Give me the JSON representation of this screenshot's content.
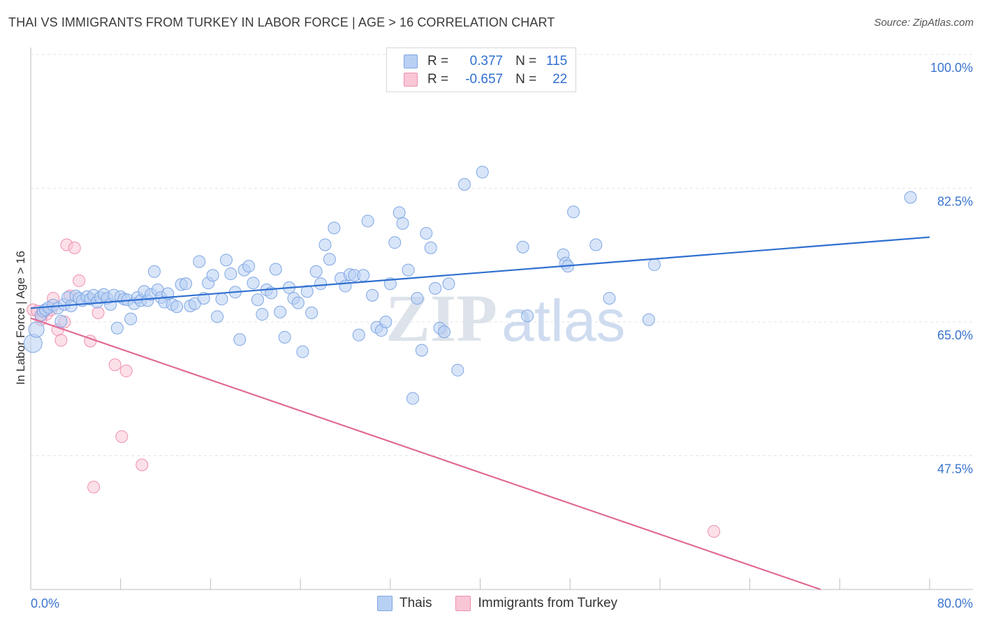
{
  "header": {
    "title": "THAI VS IMMIGRANTS FROM TURKEY IN LABOR FORCE | AGE > 16 CORRELATION CHART",
    "source": "Source: ZipAtlas.com"
  },
  "legend_top": {
    "r_label": "R =",
    "n_label": "N =",
    "thai": {
      "r": "0.377",
      "n": "115"
    },
    "turkey": {
      "r": "-0.657",
      "n": "22"
    }
  },
  "watermark": {
    "zip": "ZIP",
    "atlas": "atlas"
  },
  "colors": {
    "thai_fill": "#b8d0f4",
    "thai_stroke": "#7fa7e3",
    "thai_line": "#2f6fd0",
    "turkey_fill": "#f9c6d6",
    "turkey_stroke": "#ee8fb0",
    "turkey_line": "#e06a97",
    "tick_text": "#3b74cf"
  },
  "chart_data": {
    "type": "scatter",
    "title": "THAI VS IMMIGRANTS FROM TURKEY IN LABOR FORCE | AGE > 16 CORRELATION CHART",
    "xlabel": "",
    "ylabel": "In Labor Force | Age > 16",
    "xlim": [
      0,
      80
    ],
    "ylim": [
      30,
      100
    ],
    "x_tick_labels": [
      "0.0%",
      "80.0%"
    ],
    "y_ticks": [
      47.5,
      65.0,
      82.5,
      100.0
    ],
    "y_tick_labels": [
      "47.5%",
      "65.0%",
      "82.5%",
      "100.0%"
    ],
    "grid": true,
    "legend": [
      "Thais",
      "Immigrants from Turkey"
    ],
    "series": [
      {
        "name": "Thais",
        "r": 0.377,
        "n": 115,
        "trend": [
          [
            0,
            66.8
          ],
          [
            80,
            76.1
          ]
        ],
        "points": [
          [
            0.2,
            62.2
          ],
          [
            0.5,
            64.0
          ],
          [
            0.9,
            65.9
          ],
          [
            1.1,
            66.4
          ],
          [
            1.3,
            66.6
          ],
          [
            1.6,
            66.9
          ],
          [
            2.0,
            67.2
          ],
          [
            2.4,
            66.8
          ],
          [
            2.7,
            65.1
          ],
          [
            3.0,
            67.3
          ],
          [
            3.3,
            68.2
          ],
          [
            3.6,
            67.1
          ],
          [
            4.0,
            68.4
          ],
          [
            4.3,
            68.1
          ],
          [
            4.6,
            67.8
          ],
          [
            5.0,
            68.3
          ],
          [
            5.3,
            68.0
          ],
          [
            5.6,
            68.5
          ],
          [
            5.9,
            67.6
          ],
          [
            6.2,
            68.2
          ],
          [
            6.5,
            68.6
          ],
          [
            6.8,
            68.1
          ],
          [
            7.1,
            67.3
          ],
          [
            7.4,
            68.5
          ],
          [
            7.7,
            64.2
          ],
          [
            8.0,
            68.3
          ],
          [
            8.3,
            68.0
          ],
          [
            8.6,
            67.9
          ],
          [
            8.9,
            65.4
          ],
          [
            9.2,
            67.4
          ],
          [
            9.5,
            68.2
          ],
          [
            9.8,
            67.8
          ],
          [
            10.1,
            69.0
          ],
          [
            10.4,
            67.8
          ],
          [
            10.7,
            68.6
          ],
          [
            11.0,
            71.6
          ],
          [
            11.3,
            69.2
          ],
          [
            11.6,
            68.2
          ],
          [
            11.9,
            67.6
          ],
          [
            12.2,
            68.7
          ],
          [
            12.6,
            67.3
          ],
          [
            13.0,
            67.0
          ],
          [
            13.4,
            69.9
          ],
          [
            13.8,
            70.0
          ],
          [
            14.2,
            67.1
          ],
          [
            14.6,
            67.4
          ],
          [
            15.0,
            72.9
          ],
          [
            15.4,
            68.1
          ],
          [
            15.8,
            70.1
          ],
          [
            16.2,
            71.1
          ],
          [
            16.6,
            65.7
          ],
          [
            17.0,
            68.0
          ],
          [
            17.4,
            73.1
          ],
          [
            17.8,
            71.3
          ],
          [
            18.2,
            68.9
          ],
          [
            18.6,
            62.7
          ],
          [
            19.0,
            71.8
          ],
          [
            19.4,
            72.3
          ],
          [
            19.8,
            70.1
          ],
          [
            20.2,
            67.9
          ],
          [
            20.6,
            66.0
          ],
          [
            21.0,
            69.2
          ],
          [
            21.4,
            68.8
          ],
          [
            21.8,
            71.9
          ],
          [
            22.2,
            66.3
          ],
          [
            22.6,
            63.0
          ],
          [
            23.0,
            69.5
          ],
          [
            23.4,
            68.1
          ],
          [
            23.8,
            67.5
          ],
          [
            24.2,
            61.1
          ],
          [
            24.6,
            69.0
          ],
          [
            25.0,
            66.2
          ],
          [
            25.4,
            71.6
          ],
          [
            25.8,
            70.0
          ],
          [
            26.2,
            75.1
          ],
          [
            26.6,
            73.2
          ],
          [
            27.0,
            77.3
          ],
          [
            27.6,
            70.7
          ],
          [
            28.0,
            69.7
          ],
          [
            28.4,
            71.2
          ],
          [
            28.8,
            71.1
          ],
          [
            29.2,
            63.3
          ],
          [
            29.6,
            71.1
          ],
          [
            30.0,
            78.2
          ],
          [
            30.4,
            68.5
          ],
          [
            30.8,
            64.3
          ],
          [
            31.2,
            63.9
          ],
          [
            31.6,
            65.0
          ],
          [
            32.0,
            70.0
          ],
          [
            32.4,
            75.4
          ],
          [
            32.8,
            79.3
          ],
          [
            33.1,
            77.9
          ],
          [
            33.6,
            71.8
          ],
          [
            34.0,
            55.0
          ],
          [
            34.4,
            68.1
          ],
          [
            34.8,
            61.3
          ],
          [
            35.2,
            76.6
          ],
          [
            35.6,
            74.7
          ],
          [
            36.0,
            69.4
          ],
          [
            36.4,
            64.2
          ],
          [
            36.8,
            63.7
          ],
          [
            37.2,
            70.0
          ],
          [
            38.0,
            58.7
          ],
          [
            38.6,
            83.0
          ],
          [
            40.2,
            84.6
          ],
          [
            43.8,
            74.8
          ],
          [
            44.2,
            65.8
          ],
          [
            47.4,
            73.8
          ],
          [
            47.6,
            72.7
          ],
          [
            47.8,
            72.3
          ],
          [
            48.3,
            79.4
          ],
          [
            50.3,
            75.1
          ],
          [
            51.5,
            68.1
          ],
          [
            55.0,
            65.3
          ],
          [
            55.5,
            72.5
          ],
          [
            78.3,
            81.3
          ]
        ]
      },
      {
        "name": "Immigrants from Turkey",
        "r": -0.657,
        "n": 22,
        "trend": [
          [
            0,
            65.5
          ],
          [
            70.3,
            30.0
          ]
        ],
        "points": [
          [
            0.2,
            66.6
          ],
          [
            0.6,
            66.4
          ],
          [
            1.0,
            65.9
          ],
          [
            1.4,
            66.0
          ],
          [
            1.8,
            66.6
          ],
          [
            2.0,
            68.1
          ],
          [
            2.4,
            64.0
          ],
          [
            2.7,
            62.6
          ],
          [
            3.0,
            65.0
          ],
          [
            3.2,
            75.1
          ],
          [
            3.5,
            68.4
          ],
          [
            3.9,
            74.7
          ],
          [
            4.3,
            70.4
          ],
          [
            5.3,
            62.5
          ],
          [
            5.6,
            43.4
          ],
          [
            6.0,
            66.2
          ],
          [
            7.5,
            59.4
          ],
          [
            8.1,
            50.0
          ],
          [
            8.5,
            58.6
          ],
          [
            9.9,
            46.3
          ],
          [
            60.8,
            37.6
          ],
          [
            0.9,
            65.3
          ]
        ]
      }
    ]
  }
}
